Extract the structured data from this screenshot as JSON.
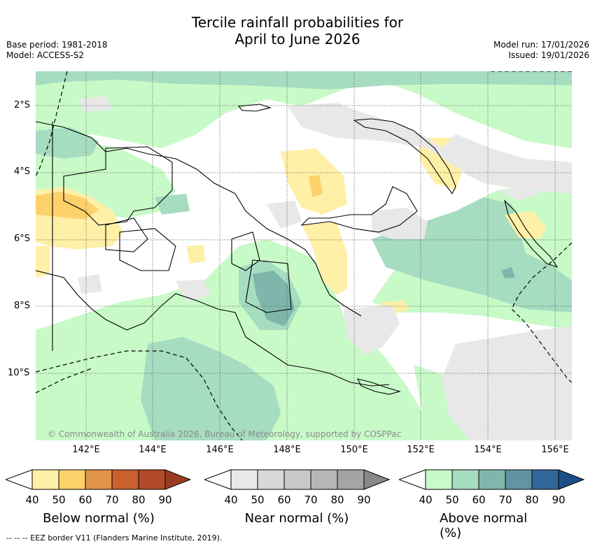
{
  "title_line1": "Tercile rainfall probabilities for",
  "title_line2": "April to June 2026",
  "base_period": "Base period: 1981-2018",
  "model": "Model: ACCESS-S2",
  "model_run": "Model run: 17/01/2026",
  "issued": "Issued: 19/01/2026",
  "latitude_labels": [
    "2°S",
    "4°S",
    "6°S",
    "8°S",
    "10°S"
  ],
  "longitude_labels": [
    "142°E",
    "144°E",
    "146°E",
    "148°E",
    "150°E",
    "152°E",
    "154°E",
    "156°E"
  ],
  "credit": "© Commonwealth of Australia 2026, Bureau of Meteorology, supported by COSPPac",
  "colorbars": [
    {
      "title": "Below normal (%)",
      "ticks": [
        "40",
        "50",
        "60",
        "70",
        "80",
        "90"
      ],
      "colors": [
        "#ffffff",
        "#fff0a8",
        "#fdd16a",
        "#e0944a",
        "#c9602e",
        "#b04a28",
        "#983c22"
      ]
    },
    {
      "title": "Near normal (%)",
      "ticks": [
        "40",
        "50",
        "60",
        "70",
        "80",
        "90"
      ],
      "colors": [
        "#ffffff",
        "#e8e8e8",
        "#d8d8d8",
        "#c8c8c8",
        "#b6b6b6",
        "#a4a4a4",
        "#888888"
      ]
    },
    {
      "title": "Above normal (%)",
      "ticks": [
        "40",
        "50",
        "60",
        "70",
        "80",
        "90"
      ],
      "colors": [
        "#ffffff",
        "#c8fac8",
        "#a6dcc0",
        "#7fb6ac",
        "#5f94a0",
        "#33669a",
        "#1c4e86"
      ]
    }
  ],
  "footnote": "--  --  -- EEZ border V11 (Flanders Marine Institute, 2019)."
}
